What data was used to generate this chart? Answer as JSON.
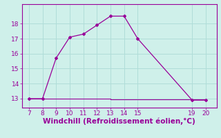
{
  "xlabel": "Windchill (Refroidissement éolien,°C)",
  "bg_color": "#cff0ea",
  "line_color": "#990099",
  "grid_color": "#b0ddd8",
  "curve_x": [
    7,
    8,
    9,
    10,
    11,
    12,
    13,
    14,
    15,
    19,
    20
  ],
  "curve_y": [
    13.0,
    13.0,
    15.7,
    17.1,
    17.3,
    17.9,
    18.5,
    18.5,
    17.0,
    12.9,
    12.9
  ],
  "flat_x": [
    7,
    8,
    9,
    10,
    11,
    12,
    13,
    14,
    15,
    19,
    20
  ],
  "flat_y": [
    13.0,
    13.0,
    13.0,
    13.0,
    13.0,
    13.0,
    12.95,
    12.95,
    12.95,
    12.95,
    12.95
  ],
  "xlim": [
    6.5,
    20.8
  ],
  "ylim": [
    12.4,
    19.3
  ],
  "xticks": [
    7,
    8,
    9,
    10,
    11,
    12,
    13,
    14,
    15,
    19,
    20
  ],
  "yticks": [
    13,
    14,
    15,
    16,
    17,
    18
  ],
  "xlabel_fontsize": 7.5,
  "tick_fontsize": 6.5
}
